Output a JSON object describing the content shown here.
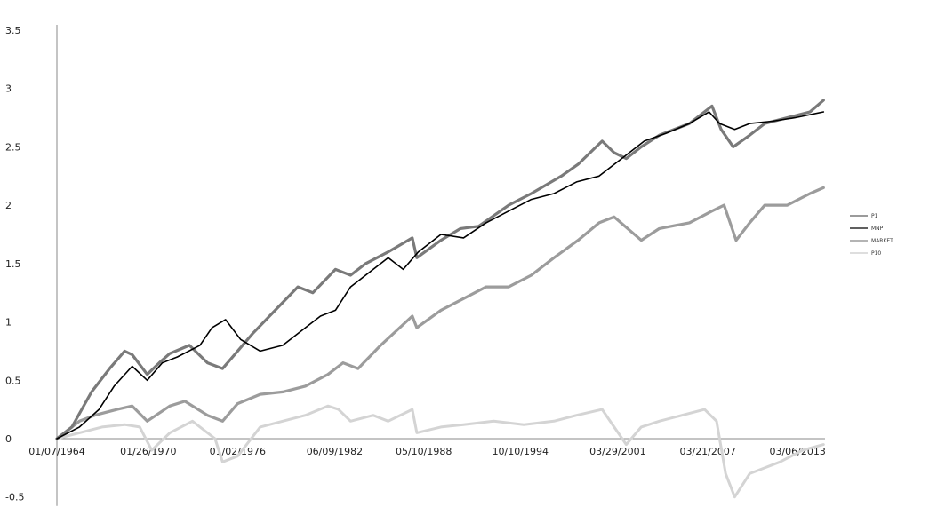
{
  "chart_data": {
    "type": "line",
    "title": "",
    "xlabel": "",
    "ylabel": "",
    "ylim": [
      -0.5,
      3.5
    ],
    "yticks": [
      -0.5,
      0,
      0.5,
      1,
      1.5,
      2,
      2.5,
      3,
      3.5
    ],
    "ytick_labels": [
      "-0.5",
      "0",
      "0.5",
      "1",
      "1.5",
      "2",
      "2.5",
      "3",
      "3.5"
    ],
    "xlim": [
      1964.0,
      2015.0
    ],
    "xtick_labels": [
      "01/07/1964",
      "01/26/1970",
      "01/02/1976",
      "06/09/1982",
      "05/10/1988",
      "10/10/1994",
      "03/29/2001",
      "03/21/2007",
      "03/06/2013"
    ],
    "xtick_values": [
      1964.0,
      1970.07,
      1976.0,
      1982.44,
      1988.36,
      1994.77,
      2001.24,
      2007.22,
      2013.18
    ],
    "grid": false,
    "legend_position": "right",
    "series": [
      {
        "name": "P1",
        "color": "#7a7a7a",
        "x": [
          1964.0,
          1965.0,
          1966.3,
          1967.5,
          1968.5,
          1969.0,
          1970.0,
          1970.8,
          1971.5,
          1972.8,
          1974.0,
          1975.0,
          1976.0,
          1977.0,
          1978.5,
          1980.0,
          1981.0,
          1982.5,
          1983.5,
          1984.5,
          1986.0,
          1987.6,
          1987.9,
          1989.5,
          1990.8,
          1992.0,
          1994.0,
          1995.5,
          1997.5,
          1998.6,
          2000.2,
          2001.0,
          2001.8,
          2002.8,
          2004.0,
          2006.0,
          2007.5,
          2008.1,
          2008.9,
          2010.0,
          2011.0,
          2012.5,
          2014.0,
          2014.9
        ],
        "y": [
          0.0,
          0.1,
          0.4,
          0.6,
          0.75,
          0.72,
          0.55,
          0.65,
          0.73,
          0.8,
          0.65,
          0.6,
          0.75,
          0.9,
          1.1,
          1.3,
          1.25,
          1.45,
          1.4,
          1.5,
          1.6,
          1.72,
          1.55,
          1.7,
          1.8,
          1.82,
          2.0,
          2.1,
          2.25,
          2.35,
          2.55,
          2.45,
          2.4,
          2.5,
          2.6,
          2.7,
          2.85,
          2.65,
          2.5,
          2.6,
          2.7,
          2.75,
          2.8,
          2.9
        ]
      },
      {
        "name": "MNP",
        "color": "#000000",
        "x": [
          1964.0,
          1965.5,
          1966.8,
          1967.8,
          1969.0,
          1970.0,
          1971.0,
          1972.0,
          1973.5,
          1974.3,
          1975.2,
          1976.2,
          1977.5,
          1979.0,
          1980.5,
          1981.5,
          1982.5,
          1983.5,
          1984.5,
          1986.0,
          1987.0,
          1988.0,
          1989.5,
          1991.0,
          1992.5,
          1994.0,
          1995.5,
          1997.0,
          1998.5,
          2000.0,
          2001.5,
          2003.0,
          2004.5,
          2006.0,
          2007.3,
          2008.0,
          2009.0,
          2010.0,
          2011.5,
          2013.0,
          2014.9
        ],
        "y": [
          0.0,
          0.1,
          0.25,
          0.45,
          0.62,
          0.5,
          0.65,
          0.7,
          0.8,
          0.95,
          1.02,
          0.85,
          0.75,
          0.8,
          0.95,
          1.05,
          1.1,
          1.3,
          1.4,
          1.55,
          1.45,
          1.6,
          1.75,
          1.72,
          1.85,
          1.95,
          2.05,
          2.1,
          2.2,
          2.25,
          2.4,
          2.55,
          2.62,
          2.7,
          2.8,
          2.7,
          2.65,
          2.7,
          2.72,
          2.75,
          2.8
        ]
      },
      {
        "name": "MARKET",
        "color": "#9c9c9c",
        "x": [
          1964.0,
          1965.5,
          1966.5,
          1968.0,
          1969.0,
          1970.0,
          1971.5,
          1972.5,
          1974.0,
          1975.0,
          1976.0,
          1977.5,
          1979.0,
          1980.5,
          1982.0,
          1983.0,
          1984.0,
          1985.5,
          1987.6,
          1987.9,
          1989.5,
          1991.0,
          1992.5,
          1994.0,
          1995.5,
          1997.0,
          1998.6,
          2000.0,
          2001.0,
          2002.8,
          2004.0,
          2006.0,
          2007.5,
          2008.3,
          2009.1,
          2010.0,
          2011.0,
          2012.5,
          2014.0,
          2014.9
        ],
        "y": [
          0.0,
          0.15,
          0.2,
          0.25,
          0.28,
          0.15,
          0.28,
          0.32,
          0.2,
          0.15,
          0.3,
          0.38,
          0.4,
          0.45,
          0.55,
          0.65,
          0.6,
          0.8,
          1.05,
          0.95,
          1.1,
          1.2,
          1.3,
          1.3,
          1.4,
          1.55,
          1.7,
          1.85,
          1.9,
          1.7,
          1.8,
          1.85,
          1.95,
          2.0,
          1.7,
          1.85,
          2.0,
          2.0,
          2.1,
          2.15
        ]
      },
      {
        "name": "P10",
        "color": "#d4d4d4",
        "x": [
          1964.0,
          1965.5,
          1967.0,
          1968.5,
          1969.5,
          1970.3,
          1971.5,
          1973.0,
          1974.5,
          1975.0,
          1976.0,
          1977.5,
          1979.0,
          1980.5,
          1982.0,
          1982.7,
          1983.5,
          1985.0,
          1986.0,
          1987.6,
          1987.9,
          1989.5,
          1991.0,
          1993.0,
          1995.0,
          1997.0,
          1998.5,
          2000.2,
          2001.0,
          2001.8,
          2002.8,
          2004.0,
          2005.5,
          2007.0,
          2007.8,
          2008.4,
          2009.0,
          2010.0,
          2011.0,
          2012.0,
          2013.5,
          2014.9
        ],
        "y": [
          0.0,
          0.05,
          0.1,
          0.12,
          0.1,
          -0.1,
          0.05,
          0.15,
          0.0,
          -0.2,
          -0.15,
          0.1,
          0.15,
          0.2,
          0.28,
          0.25,
          0.15,
          0.2,
          0.15,
          0.25,
          0.05,
          0.1,
          0.12,
          0.15,
          0.12,
          0.15,
          0.2,
          0.25,
          0.1,
          -0.05,
          0.1,
          0.15,
          0.2,
          0.25,
          0.15,
          -0.3,
          -0.5,
          -0.3,
          -0.25,
          -0.2,
          -0.1,
          -0.05
        ]
      }
    ]
  }
}
